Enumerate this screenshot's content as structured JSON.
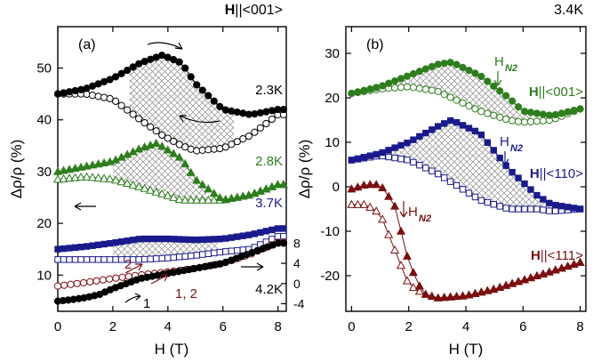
{
  "colors": {
    "black": "#000000",
    "green": "#2e7d1e",
    "navy": "#1a1a8c",
    "maroon": "#7a0f0f",
    "hatch": "#8a8a8a"
  },
  "chart_data": [
    {
      "type": "scatter",
      "panel_label": "(a)",
      "header": {
        "bold": "H",
        "rest": "||<001>"
      },
      "xlabel": "H (T)",
      "ylabel": "Δρ/ρ  (%)",
      "xlim": [
        0,
        8.3
      ],
      "ylim": [
        3,
        58
      ],
      "x_ticks": [
        0,
        2,
        4,
        6,
        8
      ],
      "y_ticks": [
        10,
        20,
        30,
        40,
        50
      ],
      "right_axis": {
        "ticks": [
          -4,
          0,
          4,
          8
        ],
        "ylim": [
          -5.5,
          10
        ]
      },
      "grid": false,
      "annotations": [
        "2",
        "1, 2",
        "1"
      ],
      "series": [
        {
          "name": "2.3K",
          "color_key": "black",
          "x": [
            0,
            1,
            2,
            3,
            3.8,
            4.5,
            5,
            6,
            7,
            8
          ],
          "up": [
            45,
            46,
            48,
            51,
            52.5,
            51,
            47,
            42,
            41,
            42
          ],
          "down": [
            45,
            45,
            44,
            40,
            37,
            35,
            34,
            34.5,
            37,
            41
          ]
        },
        {
          "name": "2.8K",
          "color_key": "green",
          "x": [
            0,
            1,
            2,
            3,
            3.6,
            4.5,
            5,
            6,
            7,
            8
          ],
          "up": [
            30,
            31,
            32,
            34.5,
            35.5,
            32.5,
            28.5,
            24.5,
            25.5,
            27.5
          ],
          "down": [
            28.5,
            29,
            28.5,
            27,
            26,
            24.5,
            24.5,
            24.5,
            25.5,
            27.5
          ]
        },
        {
          "name": "3.7K",
          "color_key": "navy",
          "x": [
            0,
            1,
            2,
            3,
            4,
            5,
            6,
            7,
            8
          ],
          "up": [
            15,
            15.5,
            16.2,
            17,
            17,
            16.8,
            17,
            17.8,
            19
          ],
          "down": [
            13,
            13,
            13,
            13,
            13.3,
            13.8,
            14.5,
            15,
            17.5
          ]
        },
        {
          "name": "4.2K",
          "color_key": "black",
          "axis": "right",
          "x": [
            0,
            0.5,
            1,
            1.5,
            2,
            3,
            4,
            5,
            6,
            7,
            8
          ],
          "values": [
            -3.5,
            -3.2,
            -2.8,
            -2.2,
            -1,
            1,
            2,
            3,
            4,
            6,
            8
          ]
        },
        {
          "name": "4.2K (red)",
          "color_key": "maroon",
          "axis": "right",
          "x": [
            0,
            1,
            2,
            3,
            4,
            5,
            6,
            7,
            8
          ],
          "values": [
            -0.5,
            0.2,
            1,
            1.7,
            2.3,
            3,
            4,
            5.8,
            8.2
          ]
        }
      ],
      "hysteresis": [
        {
          "series": "2.3K",
          "x0": 2.6,
          "x1": 6.4
        },
        {
          "series": "2.8K",
          "x0": 2,
          "x1": 5.4
        },
        {
          "series": "3.7K",
          "x0": 2,
          "x1": 5.8
        }
      ]
    },
    {
      "type": "scatter",
      "panel_label": "(b)",
      "header": "3.4K",
      "xlabel": "H (T)",
      "ylabel": "Δρ/ρ  (%)",
      "xlim": [
        -0.2,
        8.2
      ],
      "ylim": [
        -28,
        36
      ],
      "x_ticks": [
        0,
        2,
        4,
        6,
        8
      ],
      "y_ticks": [
        -20,
        -10,
        0,
        10,
        20,
        30
      ],
      "grid": false,
      "annotation": {
        "main": "H",
        "sub": "N2"
      },
      "series": [
        {
          "name": "<001>",
          "label_bold": "H",
          "label_rest": "||<001>",
          "color_key": "green",
          "x": [
            0,
            1,
            2,
            3,
            3.5,
            4.5,
            5.5,
            6,
            7,
            8
          ],
          "up": [
            21,
            22.5,
            25,
            27.5,
            28,
            25,
            20,
            17,
            16,
            17.5
          ],
          "down": [
            21,
            22,
            22.5,
            21.5,
            20,
            17,
            15,
            14.5,
            15,
            17.5
          ]
        },
        {
          "name": "<110>",
          "label_bold": "H",
          "label_rest": "||<110>",
          "color_key": "navy",
          "x": [
            0,
            1,
            2,
            3,
            3.5,
            4.5,
            5.5,
            6.5,
            7,
            8
          ],
          "up": [
            6,
            7.5,
            10,
            13.5,
            15,
            12,
            4,
            -2,
            -4,
            -5
          ],
          "down": [
            6,
            7,
            6,
            3,
            1,
            -3,
            -5,
            -5,
            -5.5,
            -5
          ]
        },
        {
          "name": "<111>",
          "label_bold": "H",
          "label_rest": "||<111>",
          "color_key": "maroon",
          "x": [
            0,
            0.5,
            1,
            1.5,
            2,
            2.5,
            3,
            4,
            5,
            6,
            7,
            8
          ],
          "up": [
            -0.5,
            0.5,
            0.5,
            -4,
            -17,
            -24,
            -25,
            -24.5,
            -23,
            -21,
            -19,
            -17
          ],
          "down": [
            -4,
            -4,
            -6,
            -14,
            -22,
            -24,
            -25,
            -24.5,
            -23,
            -21,
            -19,
            -17
          ]
        }
      ],
      "hysteresis": [
        {
          "series": "<001>",
          "x0": 1.5,
          "x1": 6.3
        },
        {
          "series": "<110>",
          "x0": 0.8,
          "x1": 7
        }
      ]
    }
  ]
}
